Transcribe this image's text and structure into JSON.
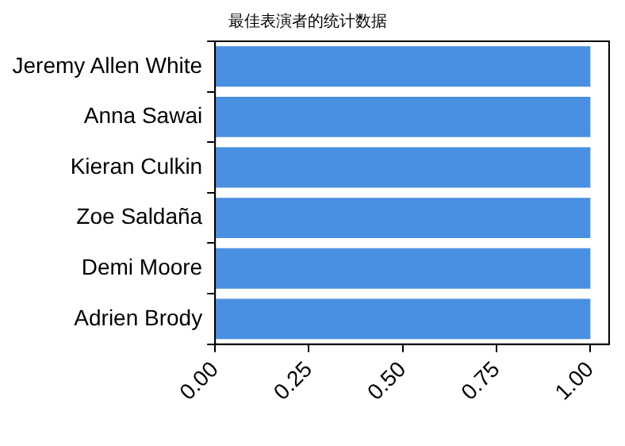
{
  "chart_data": {
    "type": "bar",
    "orientation": "horizontal",
    "title": "最佳表演者的统计数据",
    "categories": [
      "Jeremy Allen White",
      "Anna Sawai",
      "Kieran Culkin",
      "Zoe Saldaña",
      "Demi Moore",
      "Adrien Brody"
    ],
    "values": [
      1,
      1,
      1,
      1,
      1,
      1
    ],
    "color": "#4a90e2",
    "xlim": [
      0,
      1.05
    ],
    "xticks": [
      {
        "value": 0,
        "label": "0.00"
      },
      {
        "value": 0.25,
        "label": "0.25"
      },
      {
        "value": 0.5,
        "label": "0.50"
      },
      {
        "value": 0.75,
        "label": "0.75"
      },
      {
        "value": 1,
        "label": "1.00"
      }
    ],
    "grid": false,
    "legend": false
  }
}
